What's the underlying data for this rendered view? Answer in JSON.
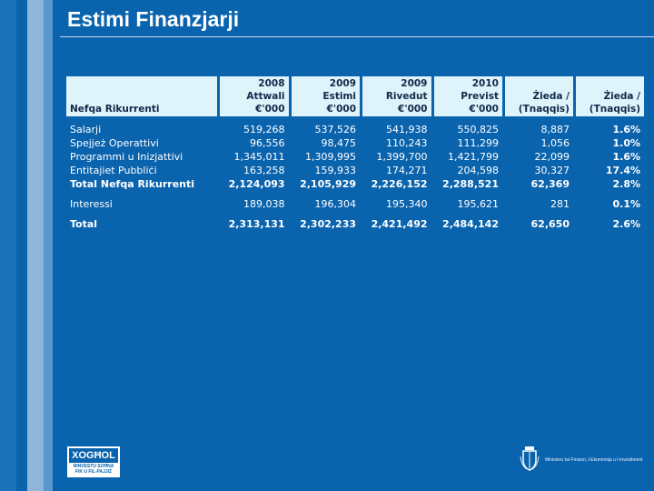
{
  "slide": {
    "title": "Estimi Finanzjarji"
  },
  "table": {
    "header_label": "Nefqa Rikurrenti",
    "columns": [
      {
        "line1": "2008 Attwali",
        "line2": "€'000"
      },
      {
        "line1": "2009 Estimi",
        "line2": "€'000"
      },
      {
        "line1": "2009 Rivedut",
        "line2": "€'000"
      },
      {
        "line1": "2010 Previst",
        "line2": "€'000"
      },
      {
        "line1": "Żieda /",
        "line2": "(Tnaqqis)"
      },
      {
        "line1": "Żieda /",
        "line2": "(Tnaqqis)"
      }
    ],
    "rows": [
      {
        "label": "Salarji",
        "values": [
          "519,268",
          "537,526",
          "541,938",
          "550,825",
          "8,887",
          "1.6%"
        ]
      },
      {
        "label": "Spejjeż Operattivi",
        "values": [
          "96,556",
          "98,475",
          "110,243",
          "111,299",
          "1,056",
          "1.0%"
        ]
      },
      {
        "label": "Programmi u Inizjattivi",
        "values": [
          "1,345,011",
          "1,309,995",
          "1,399,700",
          "1,421,799",
          "22,099",
          "1.6%"
        ]
      },
      {
        "label": "Entitajiet Pubbliċi",
        "values": [
          "163,258",
          "159,933",
          "174,271",
          "204,598",
          "30,327",
          "17.4%"
        ]
      },
      {
        "label": "Total Nefqa Rikurrenti",
        "values": [
          "2,124,093",
          "2,105,929",
          "2,226,152",
          "2,288,521",
          "62,369",
          "2.8%"
        ]
      },
      {
        "label": "Interessi",
        "values": [
          "189,038",
          "196,304",
          "195,340",
          "195,621",
          "281",
          "0.1%"
        ]
      },
      {
        "label": "Total",
        "values": [
          "2,313,131",
          "2,302,233",
          "2,421,492",
          "2,484,142",
          "62,650",
          "2.6%"
        ]
      }
    ]
  },
  "footer": {
    "logo_word": "XOGĦOL",
    "logo_sub1": "NINVESTU SOĦNA",
    "logo_sub2": "FIK U FIL-PAJJIŻ",
    "ministry_text": "Ministeru tal-Finanzi, l-Ekonomija u l-Investiment",
    "crest_icon": "malta-coat-of-arms-icon"
  },
  "colors": {
    "background": "#0a63ad",
    "header_fill": "#dff3fb",
    "header_text": "#102a4a"
  }
}
